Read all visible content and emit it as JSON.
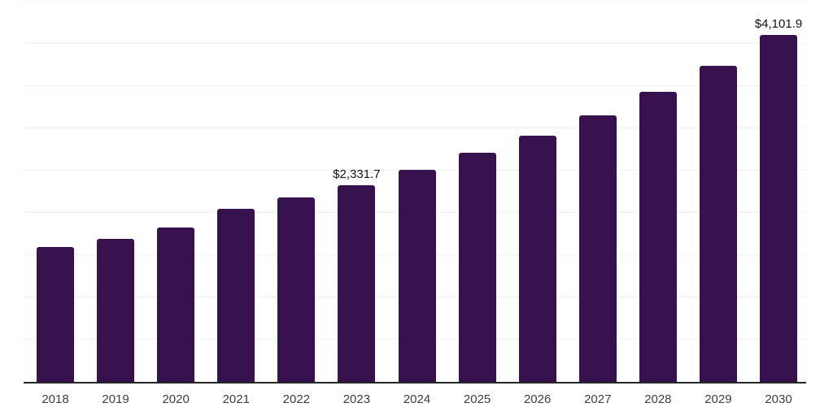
{
  "chart_data": {
    "type": "bar",
    "categories": [
      "2018",
      "2019",
      "2020",
      "2021",
      "2022",
      "2023",
      "2024",
      "2025",
      "2026",
      "2027",
      "2028",
      "2029",
      "2030"
    ],
    "values": [
      1600,
      1695,
      1825,
      2045,
      2185,
      2331.7,
      2505,
      2710,
      2915,
      3155,
      3430,
      3740,
      4101.9
    ],
    "annotations": [
      {
        "category": "2023",
        "text": "$2,331.7"
      },
      {
        "category": "2030",
        "text": "$4,101.9"
      }
    ],
    "ylim": [
      0,
      4500
    ],
    "grid_step": 500,
    "grid": true,
    "legend_position": "none",
    "colors": {
      "bar": "#36114E",
      "gridline": "#EFEFEF",
      "axis": "#262626",
      "tick_label": "#3D3D3D",
      "data_label": "#111111",
      "background": "#FFFFFF"
    }
  }
}
